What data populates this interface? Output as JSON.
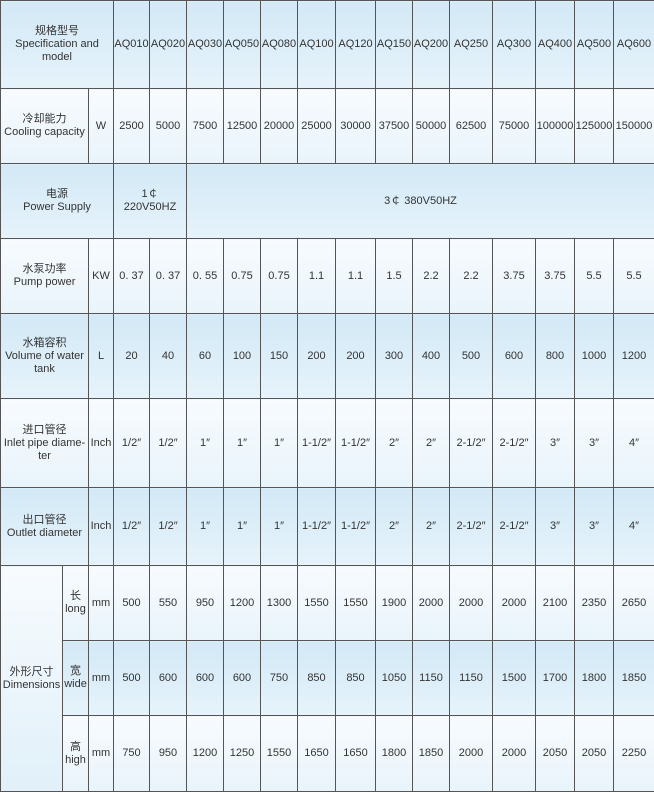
{
  "table": {
    "header": {
      "label_cn": "规格型号",
      "label_en": "Specification and model",
      "models": [
        "AQ010",
        "AQ020",
        "AQ030",
        "AQ050",
        "AQ080",
        "AQ100",
        "AQ120",
        "AQ150",
        "AQ200",
        "AQ250",
        "AQ300",
        "AQ400",
        "AQ500",
        "AQ600"
      ]
    },
    "cooling": {
      "label_cn": "冷却能力",
      "label_en": "Cooling capacity",
      "unit": "W",
      "values": [
        "2500",
        "5000",
        "7500",
        "12500",
        "20000",
        "25000",
        "30000",
        "37500",
        "50000",
        "62500",
        "75000",
        "100000",
        "125000",
        "150000"
      ]
    },
    "power": {
      "label_cn": "电源",
      "label_en": "Power Supply",
      "single": "1￠ 220V50HZ",
      "three": "3￠ 380V50HZ"
    },
    "pump": {
      "label_cn": "水泵功率",
      "label_en": "Pump power",
      "unit": "KW",
      "values": [
        "0. 37",
        "0. 37",
        "0. 55",
        "0.75",
        "0.75",
        "1.1",
        "1.1",
        "1.5",
        "2.2",
        "2.2",
        "3.75",
        "3.75",
        "5.5",
        "5.5"
      ]
    },
    "tank": {
      "label_cn": "水箱容积",
      "label_en": "Volume of water tank",
      "unit": "L",
      "values": [
        "20",
        "40",
        "60",
        "100",
        "150",
        "200",
        "200",
        "300",
        "400",
        "500",
        "600",
        "800",
        "1000",
        "1200"
      ]
    },
    "inlet": {
      "label_cn": "进口管径",
      "label_en": "Inlet pipe diame-ter",
      "unit": "Inch",
      "values": [
        "1/2″",
        "1/2″",
        "1″",
        "1″",
        "1″",
        "1-1/2″",
        "1-1/2″",
        "2″",
        "2″",
        "2-1/2″",
        "2-1/2″",
        "3″",
        "3″",
        "4″"
      ]
    },
    "outlet": {
      "label_cn": "出口管径",
      "label_en": "Outlet diameter",
      "unit": "Inch",
      "values": [
        "1/2″",
        "1/2″",
        "1″",
        "1″",
        "1″",
        "1-1/2″",
        "1-1/2″",
        "2″",
        "2″",
        "2-1/2″",
        "2-1/2″",
        "3″",
        "3″",
        "4″"
      ]
    },
    "dimensions": {
      "label_cn": "外形尺寸",
      "label_en": "Dimensions",
      "rows": [
        {
          "cn": "长",
          "en": "long",
          "unit": "mm",
          "values": [
            "500",
            "550",
            "950",
            "1200",
            "1300",
            "1550",
            "1550",
            "1900",
            "2000",
            "2000",
            "2000",
            "2100",
            "2350",
            "2650"
          ]
        },
        {
          "cn": "宽",
          "en": "wide",
          "unit": "mm",
          "values": [
            "500",
            "600",
            "600",
            "600",
            "750",
            "850",
            "850",
            "1050",
            "1150",
            "1150",
            "1500",
            "1700",
            "1800",
            "1850"
          ]
        },
        {
          "cn": "高",
          "en": "high",
          "unit": "mm",
          "values": [
            "750",
            "950",
            "1200",
            "1250",
            "1550",
            "1650",
            "1650",
            "1800",
            "1850",
            "2000",
            "2000",
            "2050",
            "2050",
            "2250"
          ]
        }
      ]
    }
  }
}
